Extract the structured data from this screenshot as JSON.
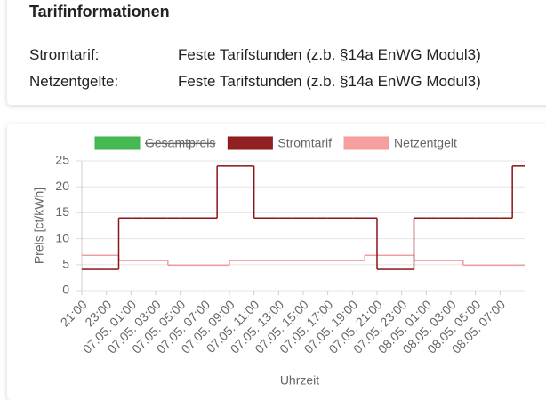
{
  "header": {
    "title": "Tarifinformationen"
  },
  "rows": [
    {
      "label": "Stromtarif:",
      "value": "Feste Tarifstunden (z.b. §14a EnWG Modul3)"
    },
    {
      "label": "Netzentgelte:",
      "value": "Feste Tarifstunden (z.b. §14a EnWG Modul3)"
    }
  ],
  "chart_data": {
    "type": "line",
    "stepped": true,
    "x_label": "Uhrzeit",
    "y_label": "Preis [ct/kWh]",
    "categories": [
      "21:00",
      null,
      "23:00",
      null,
      "07.05. 01:00",
      null,
      "07.05. 03:00",
      null,
      "07.05. 05:00",
      null,
      "07.05. 07:00",
      null,
      "07.05. 09:00",
      null,
      "07.05. 11:00",
      null,
      "07.05. 13:00",
      null,
      "07.05. 15:00",
      null,
      "07.05. 17:00",
      null,
      "07.05. 19:00",
      null,
      "07.05. 21:00",
      null,
      "07.05. 23:00",
      null,
      "08.05. 01:00",
      null,
      "08.05. 03:00",
      null,
      "08.05. 05:00",
      null,
      "08.05. 07:00",
      null
    ],
    "series": [
      {
        "name": "Gesamtpreis",
        "color": "#3db54a",
        "hidden": true
      },
      {
        "name": "Stromtarif",
        "color": "#8b1416",
        "values": [
          4.1,
          4.1,
          4.1,
          14,
          14,
          14,
          14,
          14,
          14,
          14,
          14,
          24,
          24,
          24,
          14,
          14,
          14,
          14,
          14,
          14,
          14,
          14,
          14,
          14,
          4.1,
          4.1,
          4.1,
          14,
          14,
          14,
          14,
          14,
          14,
          14,
          14,
          24
        ]
      },
      {
        "name": "Netzentgelt",
        "color": "#f59a9a",
        "values": [
          6.8,
          6.8,
          6.8,
          5.8,
          5.8,
          5.8,
          5.8,
          4.9,
          4.9,
          4.9,
          4.9,
          4.9,
          5.8,
          5.8,
          5.8,
          5.8,
          5.8,
          5.8,
          5.8,
          5.8,
          5.8,
          5.8,
          5.8,
          6.8,
          6.8,
          6.8,
          6.8,
          5.8,
          5.8,
          5.8,
          5.8,
          4.9,
          4.9,
          4.9,
          4.9,
          4.9
        ]
      }
    ],
    "ylim": [
      0,
      25
    ],
    "yticks": [
      0,
      5,
      10,
      15,
      20,
      25
    ],
    "grid": true,
    "legend": "top"
  }
}
